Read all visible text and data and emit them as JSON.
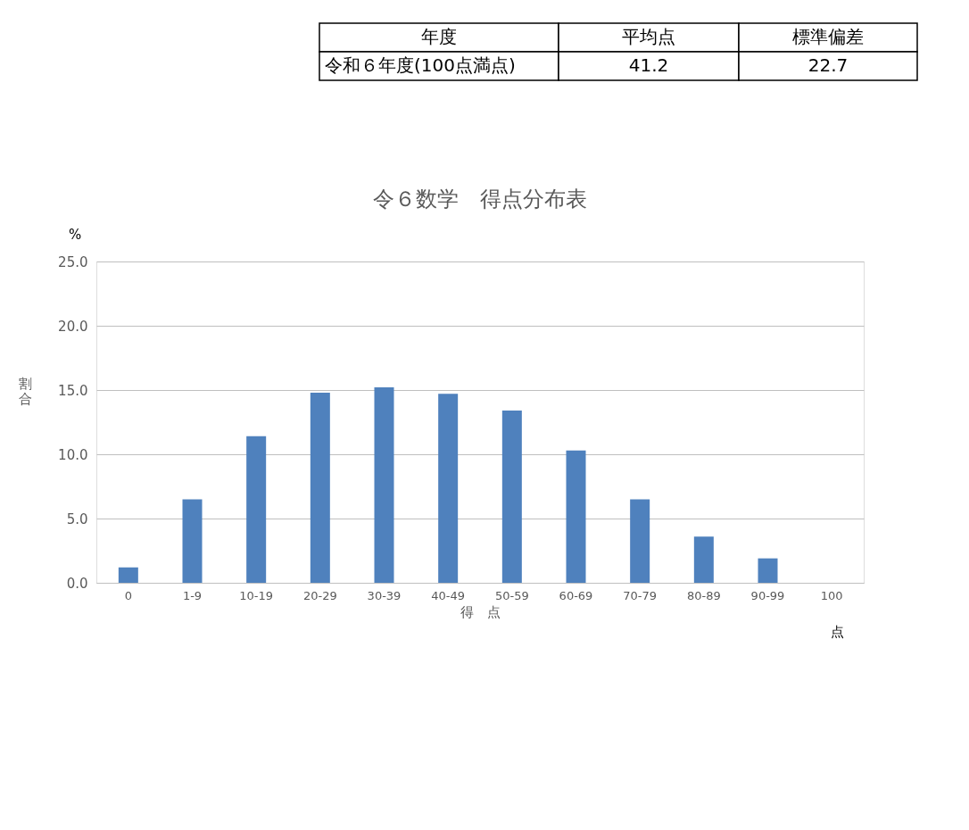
{
  "chart_data": {
    "type": "bar",
    "title": "令６数学　得点分布表",
    "xlabel": "得　点",
    "ylabel": "割合",
    "categories": [
      "0",
      "1-9",
      "10-19",
      "20-29",
      "30-39",
      "40-49",
      "50-59",
      "60-69",
      "70-79",
      "80-89",
      "90-99",
      "100"
    ],
    "values": [
      1.2,
      6.5,
      11.4,
      14.8,
      15.2,
      14.7,
      13.4,
      10.3,
      6.5,
      3.6,
      1.9,
      0
    ],
    "color": "#4f81bd",
    "ylim": [
      0,
      25
    ],
    "yticks": [
      {
        "value": 0,
        "label": "0.0"
      },
      {
        "value": 5,
        "label": "5.0"
      },
      {
        "value": 10,
        "label": "10.0"
      },
      {
        "value": 15,
        "label": "15.0"
      },
      {
        "value": 20,
        "label": "20.0"
      },
      {
        "value": 25,
        "label": "25.0"
      }
    ],
    "grid": "y",
    "annotations": [
      "%",
      "点",
      "年度",
      "平均点",
      "標準偏差",
      "令和６年度(100点満点)",
      "41.2",
      "22.7"
    ]
  }
}
